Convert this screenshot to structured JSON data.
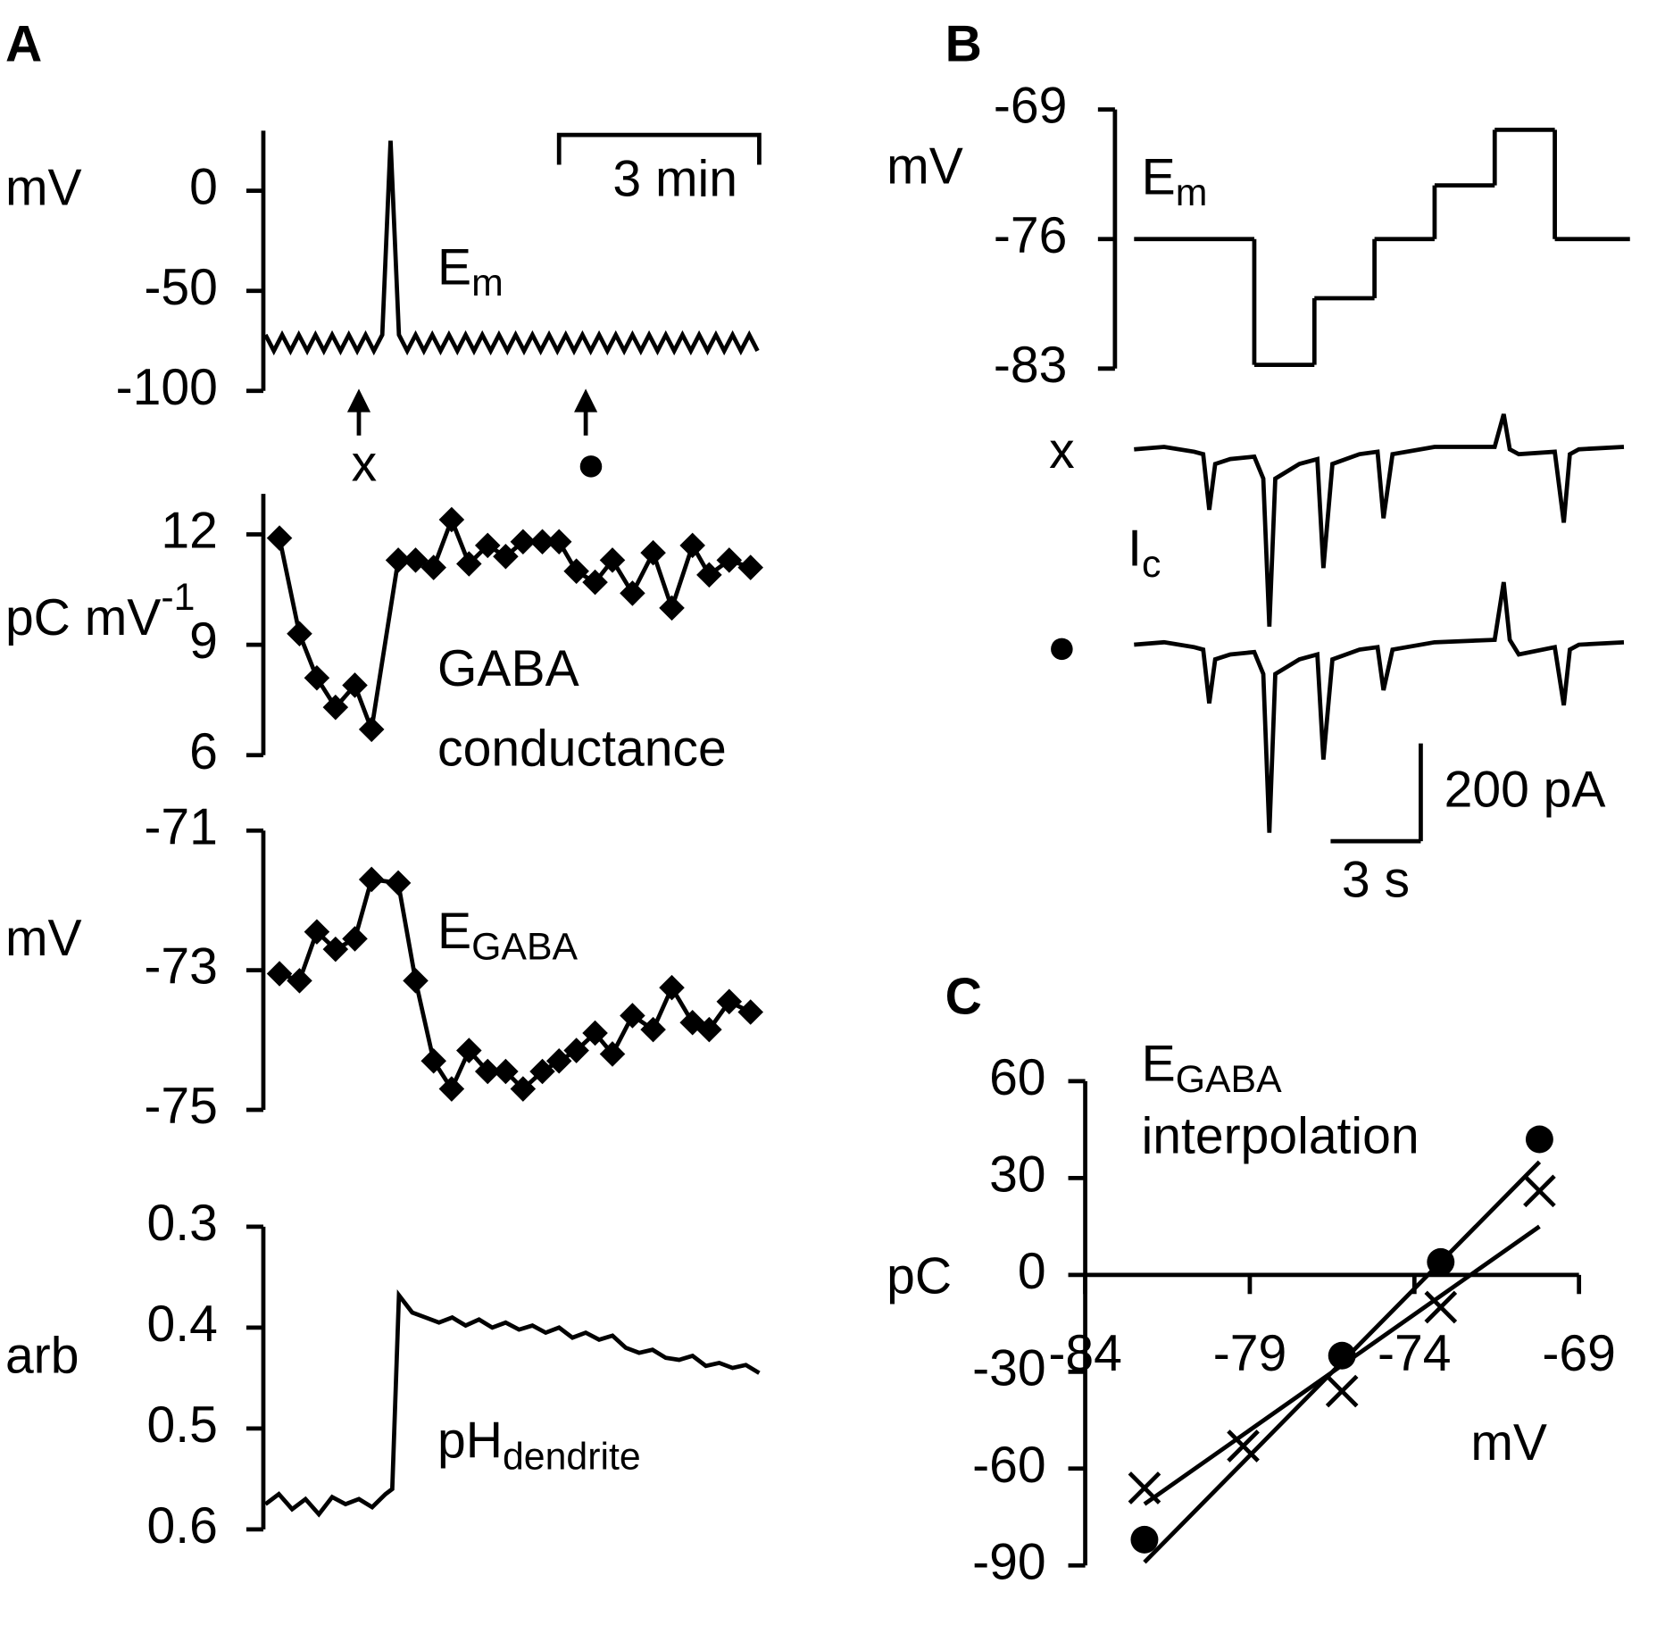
{
  "panels": [
    "A",
    "B",
    "C"
  ],
  "chart_data": [
    {
      "type": "line",
      "ylabel": "mV",
      "label": [
        "E",
        "m"
      ],
      "xlim": [
        0,
        7.4
      ],
      "ylim": [
        -100,
        30
      ],
      "yticks": [
        0,
        -50,
        -100
      ],
      "x": [
        0,
        0.125,
        0.25,
        0.375,
        0.5,
        0.625,
        0.75,
        0.875,
        1,
        1.125,
        1.25,
        1.375,
        1.5,
        1.625,
        1.75,
        1.875,
        2,
        2.125,
        2.25,
        2.375,
        2.5,
        2.625,
        2.75,
        2.875,
        3,
        3.125,
        3.25,
        3.375,
        3.5,
        3.625,
        3.75,
        3.875,
        4,
        4.125,
        4.25,
        4.375,
        4.5,
        4.625,
        4.75,
        4.875,
        5,
        5.125,
        5.25,
        5.375,
        5.5,
        5.625,
        5.75,
        5.875,
        6,
        6.125,
        6.25,
        6.375,
        6.5,
        6.625,
        6.75,
        6.875,
        7,
        7.125,
        7.25,
        7.375
      ],
      "values": [
        -72,
        -80,
        -72,
        -80,
        -72,
        -80,
        -72,
        -80,
        -72,
        -80,
        -72,
        -80,
        -72,
        -80,
        -72,
        25,
        -72,
        -80,
        -72,
        -80,
        -72,
        -80,
        -72,
        -80,
        -72,
        -80,
        -72,
        -80,
        -72,
        -80,
        -72,
        -80,
        -72,
        -80,
        -72,
        -80,
        -72,
        -80,
        -72,
        -80,
        -72,
        -80,
        -72,
        -80,
        -72,
        -80,
        -72,
        -80,
        -72,
        -80,
        -72,
        -80,
        -72,
        -80,
        -72,
        -80,
        -72,
        -80,
        -72,
        -80
      ],
      "color": "#000000",
      "scalebar": {
        "x": 3,
        "label": "3 min"
      },
      "arrows": [
        {
          "x": 1.4,
          "label": "x"
        },
        {
          "x": 4.8,
          "label": "●"
        }
      ]
    },
    {
      "type": "line",
      "marker": "diamond",
      "ylabel": [
        "pC mV",
        "-1"
      ],
      "label": [
        "GABA",
        "conductance"
      ],
      "xlim": [
        0,
        7.4
      ],
      "ylim": [
        6,
        13.1
      ],
      "yticks": [
        12,
        9,
        6
      ],
      "x": [
        0.21,
        0.51,
        0.77,
        1.05,
        1.34,
        1.59,
        1.99,
        2.25,
        2.52,
        2.79,
        3.05,
        3.33,
        3.6,
        3.86,
        4.15,
        4.4,
        4.66,
        4.94,
        5.2,
        5.5,
        5.81,
        6.09,
        6.4,
        6.65,
        6.95,
        7.27
      ],
      "values": [
        11.9,
        9.3,
        8.1,
        7.3,
        7.9,
        6.7,
        11.3,
        11.3,
        11.1,
        12.4,
        11.2,
        11.7,
        11.4,
        11.8,
        11.8,
        11.8,
        11.0,
        10.7,
        11.3,
        10.4,
        11.5,
        10.0,
        11.7,
        10.9,
        11.3,
        11.1
      ],
      "color": "#000000"
    },
    {
      "type": "line",
      "marker": "diamond",
      "ylabel": "mV",
      "label": [
        "E",
        "GABA"
      ],
      "xlim": [
        0,
        7.4
      ],
      "ylim": [
        -75,
        -71
      ],
      "yticks": [
        -71,
        -73,
        -75
      ],
      "x": [
        0.21,
        0.51,
        0.77,
        1.05,
        1.34,
        1.59,
        1.99,
        2.25,
        2.52,
        2.79,
        3.05,
        3.33,
        3.6,
        3.86,
        4.15,
        4.4,
        4.66,
        4.94,
        5.2,
        5.5,
        5.81,
        6.09,
        6.4,
        6.65,
        6.95,
        7.27
      ],
      "values": [
        -73.05,
        -73.15,
        -72.45,
        -72.7,
        -72.55,
        -71.7,
        -71.75,
        -73.15,
        -74.3,
        -74.7,
        -74.15,
        -74.45,
        -74.45,
        -74.7,
        -74.45,
        -74.3,
        -74.15,
        -73.9,
        -74.2,
        -73.65,
        -73.85,
        -73.25,
        -73.75,
        -73.85,
        -73.45,
        -73.6
      ],
      "color": "#000000"
    },
    {
      "type": "line",
      "ylabel": "arb",
      "label": [
        "pH",
        "dendrite"
      ],
      "xlim": [
        0,
        7.4
      ],
      "ylim": [
        0.6,
        0.3
      ],
      "yticks": [
        0.3,
        0.4,
        0.5,
        0.6
      ],
      "x": [
        0,
        0.2,
        0.4,
        0.6,
        0.8,
        1,
        1.2,
        1.4,
        1.6,
        1.8,
        1.9,
        2,
        2.2,
        2.4,
        2.6,
        2.8,
        3,
        3.2,
        3.4,
        3.6,
        3.8,
        4,
        4.2,
        4.4,
        4.6,
        4.8,
        5,
        5.2,
        5.4,
        5.6,
        5.8,
        6,
        6.2,
        6.4,
        6.6,
        6.8,
        7,
        7.2,
        7.4
      ],
      "values": [
        0.575,
        0.565,
        0.58,
        0.57,
        0.585,
        0.568,
        0.575,
        0.57,
        0.578,
        0.565,
        0.56,
        0.368,
        0.385,
        0.39,
        0.395,
        0.39,
        0.398,
        0.392,
        0.4,
        0.395,
        0.402,
        0.398,
        0.405,
        0.4,
        0.41,
        0.405,
        0.412,
        0.408,
        0.42,
        0.425,
        0.422,
        0.43,
        0.432,
        0.428,
        0.438,
        0.435,
        0.44,
        0.437,
        0.445
      ],
      "color": "#000000"
    },
    {
      "type": "line",
      "drawstyle": "steps-post",
      "ylabel": "mV",
      "label": [
        "E",
        "m"
      ],
      "xlim": [
        0,
        16.5
      ],
      "ylim": [
        -83,
        -69
      ],
      "yticks": [
        -69,
        -76,
        -83
      ],
      "x": [
        0,
        4,
        6,
        8,
        10,
        12,
        14
      ],
      "values": [
        -76,
        -82.8,
        -79.2,
        -76,
        -73.1,
        -70.1,
        -76
      ],
      "color": "#000000"
    },
    {
      "type": "line",
      "label": [
        "I",
        "c"
      ],
      "xlim": [
        0,
        16.5
      ],
      "x": [
        0,
        1,
        2,
        2.3,
        2.5,
        2.7,
        3.2,
        4.0,
        4.3,
        4.5,
        4.7,
        5.5,
        6.1,
        6.3,
        6.6,
        7.5,
        8.1,
        8.3,
        8.6,
        10,
        12.0,
        12.3,
        12.5,
        12.8,
        14.0,
        14.3,
        14.5,
        14.8,
        16.3
      ],
      "series": [
        {
          "name": "x",
          "color": "#000000",
          "values": [
            0,
            5,
            -5,
            -10,
            -124,
            -30,
            -20,
            -15,
            -60,
            -363,
            -60,
            -30,
            -20,
            -243,
            -30,
            -10,
            -5,
            -141,
            -10,
            5,
            5,
            72,
            0,
            -10,
            -5,
            -150,
            -10,
            0,
            5
          ]
        },
        {
          "name": "●",
          "color": "#000000",
          "values": [
            0,
            5,
            -5,
            -10,
            -120,
            -30,
            -20,
            -15,
            -60,
            -385,
            -60,
            -30,
            -20,
            -235,
            -30,
            -10,
            -5,
            -93,
            -10,
            5,
            10,
            128,
            10,
            -20,
            -5,
            -124,
            -10,
            0,
            5
          ]
        }
      ],
      "scalebar": {
        "x": 3,
        "x_label": "3 s",
        "y": 200,
        "y_label": "200 pA"
      }
    },
    {
      "type": "scatter",
      "title": [
        "E",
        "GABA"
      ],
      "title2": "interpolation",
      "xlabel": "mV",
      "ylabel": "pC",
      "xlim": [
        -84,
        -69
      ],
      "ylim": [
        -90,
        60
      ],
      "xticks": [
        -84,
        -79,
        -74,
        -69
      ],
      "yticks": [
        60,
        30,
        0,
        -30,
        -60,
        -90
      ],
      "series": [
        {
          "marker": "circle",
          "color": "#000000",
          "x": [
            -82.2,
            -76.2,
            -73.2,
            -70.2
          ],
          "values": [
            -82,
            -25,
            4,
            42
          ]
        },
        {
          "marker": "cross",
          "color": "#000000",
          "x": [
            -82.2,
            -79.2,
            -76.2,
            -73.2,
            -70.2
          ],
          "values": [
            -66,
            -53,
            -36,
            -10,
            26
          ]
        }
      ],
      "fits": [
        {
          "x": [
            -82.2,
            -70.2
          ],
          "values": [
            -89,
            35
          ]
        },
        {
          "x": [
            -82.2,
            -70.2
          ],
          "values": [
            -71,
            15
          ]
        }
      ]
    }
  ]
}
